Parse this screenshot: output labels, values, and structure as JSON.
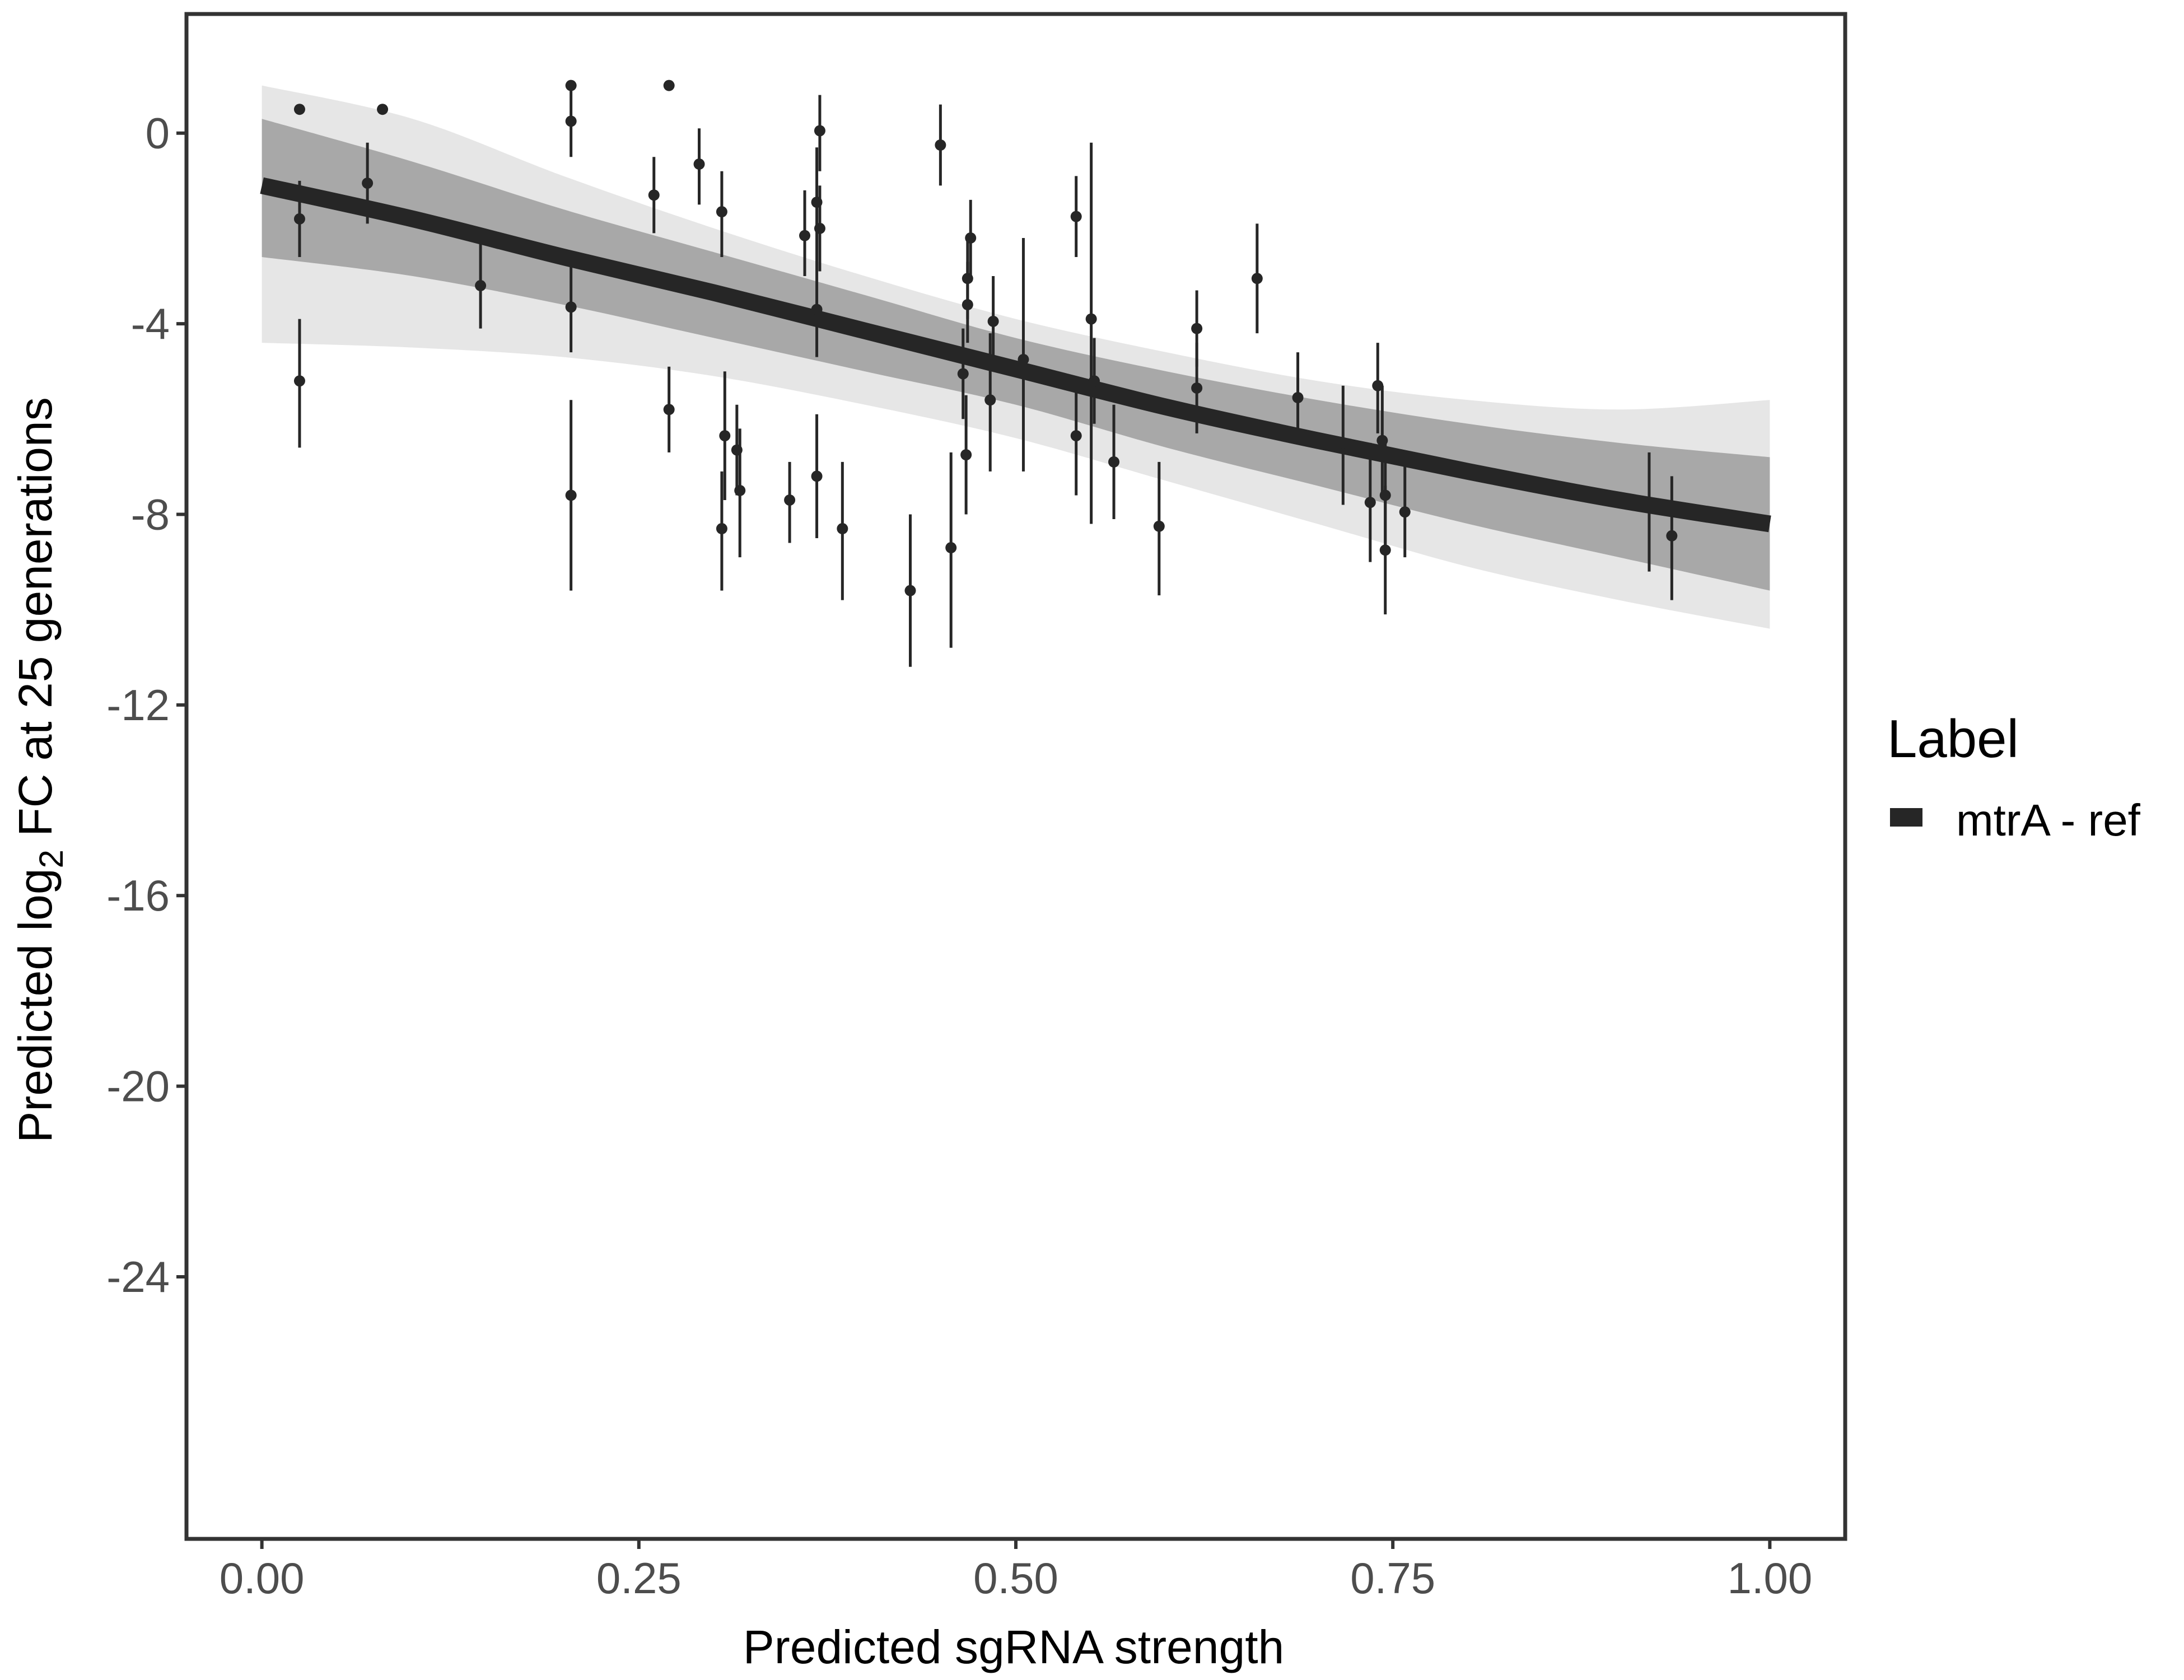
{
  "chart_data": {
    "type": "scatter",
    "xlabel": "Predicted sgRNA strength",
    "ylabel_parts": [
      "Predicted  log",
      "2",
      " FC at 25 generations"
    ],
    "xlim": [
      -0.05,
      1.05
    ],
    "ylim": [
      -29.5,
      2.5
    ],
    "x_ticks": [
      0,
      0.25,
      0.5,
      0.75,
      1
    ],
    "x_tick_labels": [
      "0.00",
      "0.25",
      "0.50",
      "0.75",
      "1.00"
    ],
    "y_ticks": [
      0,
      -4,
      -8,
      -12,
      -16,
      -20,
      -24
    ],
    "y_tick_labels": [
      "0",
      "-4",
      "-8",
      "-12",
      "-16",
      "-20",
      "-24"
    ],
    "legend": {
      "title": "Label",
      "items": [
        {
          "label": "mtrA - ref",
          "color": "#262626"
        }
      ]
    },
    "colors": {
      "fit": "#262626",
      "band": "#a8a8a8",
      "band_faint": "#e6e6e6",
      "points": "#262626",
      "frame": "#333333"
    },
    "fit_curve": {
      "x": [
        0,
        0.1,
        0.2,
        0.3,
        0.4,
        0.5,
        0.6,
        0.7,
        0.8,
        0.9,
        1.0
      ],
      "y": [
        -1.1,
        -1.8,
        -2.6,
        -3.35,
        -4.15,
        -4.95,
        -5.75,
        -6.45,
        -7.1,
        -7.7,
        -8.2
      ]
    },
    "band_upper": {
      "x": [
        0,
        0.1,
        0.2,
        0.3,
        0.4,
        0.5,
        0.6,
        0.7,
        0.8,
        0.9,
        1.0
      ],
      "y": [
        0.3,
        -0.6,
        -1.6,
        -2.5,
        -3.4,
        -4.3,
        -5.0,
        -5.6,
        -6.1,
        -6.5,
        -6.8
      ]
    },
    "band_lower": {
      "x": [
        0,
        0.1,
        0.2,
        0.3,
        0.4,
        0.5,
        0.6,
        0.7,
        0.8,
        0.9,
        1.0
      ],
      "y": [
        -2.6,
        -3.0,
        -3.6,
        -4.3,
        -5.0,
        -5.7,
        -6.6,
        -7.4,
        -8.2,
        -8.9,
        -9.6
      ]
    },
    "band_outer_upper": {
      "x": [
        0,
        0.1,
        0.2,
        0.3,
        0.4,
        0.5,
        0.6,
        0.7,
        0.8,
        0.9,
        1.0
      ],
      "y": [
        1.0,
        0.3,
        -0.9,
        -2.0,
        -3.0,
        -3.9,
        -4.6,
        -5.2,
        -5.6,
        -5.8,
        -5.6
      ]
    },
    "band_outer_lower": {
      "x": [
        0,
        0.1,
        0.2,
        0.3,
        0.4,
        0.5,
        0.6,
        0.7,
        0.8,
        0.9,
        1.0
      ],
      "y": [
        -4.4,
        -4.5,
        -4.7,
        -5.1,
        -5.7,
        -6.4,
        -7.3,
        -8.2,
        -9.1,
        -9.8,
        -10.4
      ]
    },
    "points": [
      {
        "x": 0.025,
        "y": 0.5,
        "lo": 0.5,
        "hi": 0.5
      },
      {
        "x": 0.025,
        "y": -1.8,
        "lo": -2.6,
        "hi": -1.0
      },
      {
        "x": 0.025,
        "y": -5.2,
        "lo": -6.6,
        "hi": -3.9
      },
      {
        "x": 0.07,
        "y": -1.05,
        "lo": -1.9,
        "hi": -0.2
      },
      {
        "x": 0.08,
        "y": 0.5,
        "lo": 0.5,
        "hi": 0.5
      },
      {
        "x": 0.145,
        "y": -3.2,
        "lo": -4.1,
        "hi": -2.3
      },
      {
        "x": 0.205,
        "y": 1.0,
        "lo": 1.0,
        "hi": 1.0
      },
      {
        "x": 0.205,
        "y": 0.25,
        "lo": -0.5,
        "hi": 1.0
      },
      {
        "x": 0.205,
        "y": -3.65,
        "lo": -4.6,
        "hi": -2.7
      },
      {
        "x": 0.205,
        "y": -7.6,
        "lo": -9.6,
        "hi": -5.6
      },
      {
        "x": 0.26,
        "y": -1.3,
        "lo": -2.1,
        "hi": -0.5
      },
      {
        "x": 0.27,
        "y": 1.0,
        "lo": 1.0,
        "hi": 1.0
      },
      {
        "x": 0.27,
        "y": -5.8,
        "lo": -6.7,
        "hi": -4.9
      },
      {
        "x": 0.29,
        "y": -0.65,
        "lo": -1.5,
        "hi": 0.1
      },
      {
        "x": 0.305,
        "y": -1.65,
        "lo": -2.6,
        "hi": -0.8
      },
      {
        "x": 0.305,
        "y": -8.3,
        "lo": -9.6,
        "hi": -7.1
      },
      {
        "x": 0.307,
        "y": -6.35,
        "lo": -7.7,
        "hi": -5.0
      },
      {
        "x": 0.315,
        "y": -6.65,
        "lo": -7.6,
        "hi": -5.7
      },
      {
        "x": 0.317,
        "y": -7.5,
        "lo": -8.9,
        "hi": -6.2
      },
      {
        "x": 0.35,
        "y": -7.7,
        "lo": -8.6,
        "hi": -6.9
      },
      {
        "x": 0.36,
        "y": -2.15,
        "lo": -3.0,
        "hi": -1.2
      },
      {
        "x": 0.368,
        "y": -1.45,
        "lo": -2.7,
        "hi": -0.3
      },
      {
        "x": 0.368,
        "y": -3.7,
        "lo": -4.7,
        "hi": -2.7
      },
      {
        "x": 0.368,
        "y": -7.2,
        "lo": -8.5,
        "hi": -5.9
      },
      {
        "x": 0.37,
        "y": 0.05,
        "lo": -0.8,
        "hi": 0.8
      },
      {
        "x": 0.37,
        "y": -2.0,
        "lo": -2.9,
        "hi": -1.1
      },
      {
        "x": 0.385,
        "y": -8.3,
        "lo": -9.8,
        "hi": -6.9
      },
      {
        "x": 0.43,
        "y": -9.6,
        "lo": -11.2,
        "hi": -8.0
      },
      {
        "x": 0.45,
        "y": -0.25,
        "lo": -1.1,
        "hi": 0.6
      },
      {
        "x": 0.457,
        "y": -8.7,
        "lo": -10.8,
        "hi": -6.7
      },
      {
        "x": 0.465,
        "y": -5.05,
        "lo": -6.0,
        "hi": -4.1
      },
      {
        "x": 0.467,
        "y": -6.75,
        "lo": -8.0,
        "hi": -5.5
      },
      {
        "x": 0.468,
        "y": -3.05,
        "lo": -3.9,
        "hi": -2.2
      },
      {
        "x": 0.468,
        "y": -3.6,
        "lo": -4.4,
        "hi": -2.7
      },
      {
        "x": 0.47,
        "y": -2.2,
        "lo": -3.0,
        "hi": -1.4
      },
      {
        "x": 0.483,
        "y": -5.6,
        "lo": -7.1,
        "hi": -4.2
      },
      {
        "x": 0.485,
        "y": -3.95,
        "lo": -4.9,
        "hi": -3.0
      },
      {
        "x": 0.505,
        "y": -4.75,
        "lo": -7.1,
        "hi": -2.2
      },
      {
        "x": 0.54,
        "y": -1.75,
        "lo": -2.6,
        "hi": -0.9
      },
      {
        "x": 0.54,
        "y": -6.35,
        "lo": -7.6,
        "hi": -5.1
      },
      {
        "x": 0.55,
        "y": -3.9,
        "lo": -8.2,
        "hi": -0.2
      },
      {
        "x": 0.552,
        "y": -5.2,
        "lo": -6.1,
        "hi": -4.3
      },
      {
        "x": 0.565,
        "y": -6.9,
        "lo": -8.1,
        "hi": -5.7
      },
      {
        "x": 0.595,
        "y": -8.25,
        "lo": -9.7,
        "hi": -6.9
      },
      {
        "x": 0.62,
        "y": -4.1,
        "lo": -4.9,
        "hi": -3.3
      },
      {
        "x": 0.62,
        "y": -5.35,
        "lo": -6.3,
        "hi": -4.4
      },
      {
        "x": 0.66,
        "y": -3.05,
        "lo": -4.2,
        "hi": -1.9
      },
      {
        "x": 0.687,
        "y": -5.55,
        "lo": -6.5,
        "hi": -4.6
      },
      {
        "x": 0.717,
        "y": -6.5,
        "lo": -7.8,
        "hi": -5.3
      },
      {
        "x": 0.735,
        "y": -7.75,
        "lo": -9.0,
        "hi": -6.5
      },
      {
        "x": 0.74,
        "y": -5.3,
        "lo": -6.3,
        "hi": -4.4
      },
      {
        "x": 0.743,
        "y": -6.45,
        "lo": -7.6,
        "hi": -5.3
      },
      {
        "x": 0.745,
        "y": -7.6,
        "lo": -8.8,
        "hi": -6.4
      },
      {
        "x": 0.745,
        "y": -8.75,
        "lo": -10.1,
        "hi": -7.4
      },
      {
        "x": 0.758,
        "y": -7.95,
        "lo": -8.9,
        "hi": -7.0
      },
      {
        "x": 0.92,
        "y": -7.8,
        "lo": -9.2,
        "hi": -6.7
      },
      {
        "x": 0.935,
        "y": -8.45,
        "lo": -9.8,
        "hi": -7.2
      }
    ]
  }
}
